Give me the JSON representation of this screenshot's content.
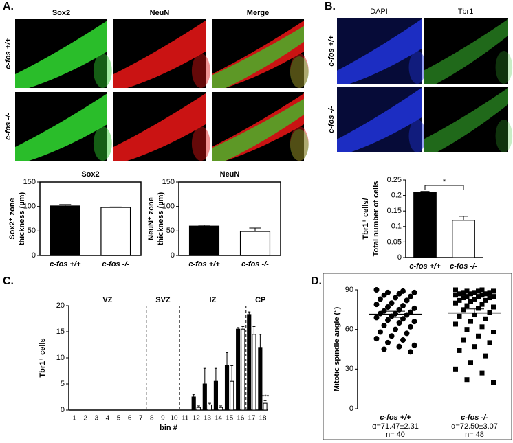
{
  "panel_labels": [
    "A.",
    "B.",
    "C.",
    "D."
  ],
  "panel_a": {
    "columns": [
      "Sox2",
      "NeuN",
      "Merge"
    ],
    "rows": [
      "c-fos +/+",
      "c-fos -/-"
    ]
  },
  "panel_b": {
    "columns": [
      "DAPI",
      "Tbr1"
    ],
    "rows": [
      "c-fos +/+",
      "c-fos -/-"
    ]
  },
  "chart_data": [
    {
      "type": "bar",
      "title": "Sox2",
      "ylabel": [
        "Sox2⁺ zone",
        "thickness (µm)"
      ],
      "categories": [
        "c-fos +/+",
        "c-fos -/-"
      ],
      "values": [
        101,
        98
      ],
      "errors": [
        3,
        1
      ],
      "colors": [
        "#000000",
        "#ffffff"
      ],
      "ylim": [
        0,
        150
      ],
      "yticks": [
        0,
        50,
        100,
        150
      ]
    },
    {
      "type": "bar",
      "title": "NeuN",
      "ylabel": [
        "NeuN⁺ zone",
        "thickness (µm)"
      ],
      "categories": [
        "c-fos +/+",
        "c-fos -/-"
      ],
      "values": [
        60,
        49
      ],
      "errors": [
        2,
        7
      ],
      "colors": [
        "#000000",
        "#ffffff"
      ],
      "ylim": [
        0,
        150
      ],
      "yticks": [
        0,
        50,
        100,
        150
      ]
    },
    {
      "type": "bar",
      "ylabel": [
        "Tbr1⁺ cells/",
        "Total number of cells"
      ],
      "categories": [
        "c-fos +/+",
        "c-fos -/-"
      ],
      "values": [
        0.21,
        0.12
      ],
      "errors": [
        0.003,
        0.013
      ],
      "colors": [
        "#000000",
        "#ffffff"
      ],
      "ylim": [
        0,
        0.25
      ],
      "yticks": [
        0,
        0.05,
        0.1,
        0.15,
        0.2,
        0.25
      ],
      "annotation": "*"
    },
    {
      "type": "grouped_bar",
      "ylabel": [
        "Tbr1⁺ cells"
      ],
      "xlabel": "bin #",
      "categories": [
        "1",
        "2",
        "3",
        "4",
        "5",
        "6",
        "7",
        "8",
        "9",
        "10",
        "11",
        "12",
        "13",
        "14",
        "15",
        "16",
        "17",
        "18"
      ],
      "series": [
        {
          "color": "#000000",
          "values": [
            0,
            0,
            0,
            0,
            0,
            0,
            0,
            0,
            0,
            0,
            0,
            2.5,
            5,
            5.5,
            8.5,
            15.5,
            18.3,
            12
          ],
          "errors": [
            0,
            0,
            0,
            0,
            0,
            0,
            0,
            0,
            0,
            0,
            0,
            0.5,
            3,
            2.5,
            2.5,
            0.3,
            0.5,
            2.5
          ]
        },
        {
          "color": "#ffffff",
          "values": [
            0,
            0,
            0,
            0,
            0,
            0,
            0,
            0,
            0,
            0,
            0,
            0.5,
            1,
            0.5,
            5.5,
            15.5,
            14.5,
            1.3
          ],
          "errors": [
            0,
            0,
            0,
            0,
            0,
            0,
            0,
            0,
            0,
            0,
            0,
            0.3,
            0.3,
            0.3,
            3,
            0.5,
            1.5,
            0.5
          ]
        }
      ],
      "zones": [
        "VZ",
        "SVZ",
        "IZ",
        "CP"
      ],
      "annotation": "***",
      "ylim": [
        0,
        20
      ],
      "yticks": [
        0,
        5,
        10,
        15,
        20
      ]
    },
    {
      "type": "dot_plot",
      "ylabel": [
        "Mitotic spindle angle (°)"
      ],
      "ylim": [
        0,
        90
      ],
      "yticks": [
        0,
        30,
        60,
        90
      ],
      "groups": [
        {
          "label": "c-fos +/+",
          "stat": "α=71.47±2.31",
          "n": "n= 40",
          "marker": "circle",
          "mean": 71.47,
          "sem": 2.31,
          "values": [
            90,
            89,
            88,
            88,
            87,
            86,
            85,
            84,
            83,
            82,
            80,
            79,
            78,
            77,
            76,
            75,
            74,
            73,
            72,
            72,
            71,
            70,
            69,
            68,
            67,
            66,
            65,
            63,
            62,
            60,
            58,
            57,
            55,
            53,
            52,
            50,
            48,
            47,
            45,
            43
          ]
        },
        {
          "label": "c-fos -/-",
          "stat": "α=72.50±3.07",
          "n": "n= 48",
          "marker": "square",
          "mean": 72.5,
          "sem": 3.07,
          "values": [
            90,
            90,
            89,
            89,
            89,
            88,
            88,
            88,
            87,
            87,
            87,
            86,
            86,
            85,
            85,
            85,
            84,
            84,
            83,
            82,
            82,
            81,
            80,
            79,
            78,
            77,
            76,
            75,
            73,
            71,
            70,
            68,
            66,
            64,
            62,
            60,
            58,
            55,
            52,
            50,
            47,
            44,
            40,
            35,
            30,
            27,
            22,
            20
          ]
        }
      ]
    }
  ]
}
